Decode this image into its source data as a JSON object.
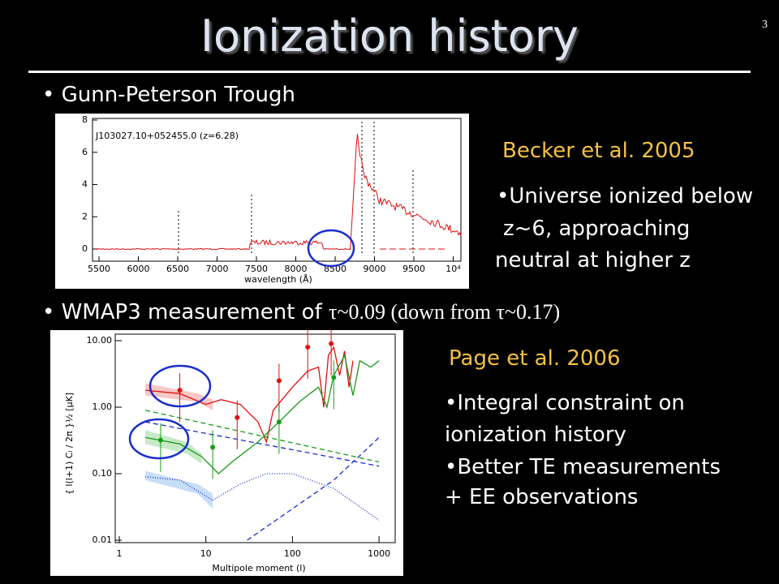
{
  "slide": {
    "title": "Ionization history",
    "page_number": "3",
    "sections": [
      {
        "bullet": [
          "• Gunn-Peterson Trough"
        ],
        "citation": "Becker et al. 2005",
        "notes": [
          "•Universe ionized below",
          "z~6, approaching",
          "neutral at higher z"
        ]
      },
      {
        "bullet": [
          "• WMAP3 measurement of ",
          "τ~0.09 (down from τ~0.17)"
        ],
        "citation": "Page et al. 2006",
        "notes": [
          "•Integral constraint on",
          "ionization history",
          "•Better TE measurements",
          "+ EE observations"
        ]
      }
    ]
  },
  "figures": [
    {
      "label": "J103027.10+052455.0 (z=6.28)",
      "xlabel": "wavelength (Å)",
      "xticks": [
        "5500",
        "6000",
        "6500",
        "7000",
        "7500",
        "8000",
        "8500",
        "9000",
        "9500",
        "10⁴"
      ],
      "yticks": [
        "0",
        "2",
        "4",
        "6",
        "8"
      ]
    },
    {
      "xlabel": "Multipole moment (l)",
      "ylabel": "{ l(l+1) Cₗ / 2π }½  [μK]",
      "xticks": [
        "1",
        "10",
        "100",
        "1000"
      ],
      "yticks": [
        "10.00",
        "1.00",
        "0.10",
        "0.01"
      ]
    }
  ]
}
